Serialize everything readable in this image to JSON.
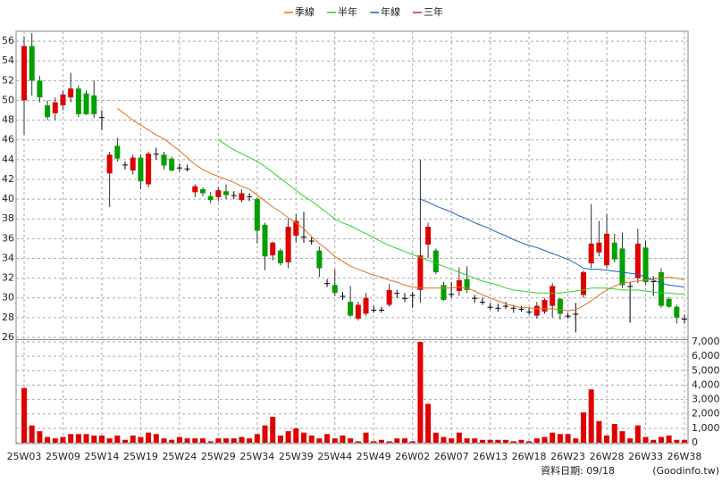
{
  "chart_data": [
    {
      "type": "candlestick",
      "legend": "top",
      "grid": true,
      "categories": [
        "25W03",
        null,
        null,
        null,
        null,
        "25W09",
        null,
        null,
        null,
        null,
        "25W14",
        null,
        null,
        null,
        null,
        "25W19",
        null,
        null,
        null,
        null,
        "25W24",
        null,
        null,
        null,
        null,
        "25W29",
        null,
        null,
        null,
        null,
        "25W34",
        null,
        null,
        null,
        null,
        "25W39",
        null,
        null,
        null,
        null,
        "25W44",
        null,
        null,
        null,
        null,
        "25W49",
        null,
        null,
        null,
        null,
        "26W02",
        null,
        null,
        null,
        null,
        "26W07",
        null,
        null,
        null,
        null,
        "26W13",
        null,
        null,
        null,
        null,
        "26W18",
        null,
        null,
        null,
        null,
        "26W23",
        null,
        null,
        null,
        null,
        "26W28",
        null,
        null,
        null,
        null,
        "26W33",
        null,
        null,
        null,
        null,
        "26W38"
      ],
      "open": [
        50,
        55.5,
        52,
        49.5,
        48.7,
        49.5,
        50.3,
        51.2,
        50.7,
        50.5,
        48.3,
        42.6,
        45.4,
        43.5,
        42.9,
        44.2,
        41.5,
        44.6,
        44.5,
        44.1,
        43.2,
        43.1,
        40.7,
        41,
        40.3,
        40.2,
        40.8,
        40.4,
        39.9,
        40.3,
        40,
        37.4,
        34.3,
        34.8,
        33.6,
        36.3,
        36.2,
        35.8,
        34.8,
        31.5,
        31.3,
        30.2,
        29.6,
        27.9,
        28.4,
        28.8,
        28.8,
        29.3,
        30.5,
        30,
        30.3,
        30.8,
        35.4,
        34.8,
        31.3,
        30.4,
        30.7,
        31.9,
        30,
        29.6,
        29.1,
        29,
        29.2,
        29,
        28.9,
        28.6,
        28.2,
        28.6,
        29.2,
        29.9,
        28.2,
        28.4,
        30.3,
        33.5,
        34.6,
        33.3,
        35.6,
        35,
        31.2,
        32,
        35.1,
        31.7,
        32.6,
        29.9,
        29.1,
        27.9
      ],
      "high": [
        56.5,
        56.8,
        52.5,
        50,
        50.3,
        51,
        52.8,
        51.5,
        51,
        52,
        49,
        44.8,
        46.2,
        43.8,
        44.5,
        44.5,
        44.8,
        45.2,
        44.8,
        44.3,
        43.6,
        43.5,
        41.5,
        41.2,
        40.7,
        41.2,
        41.5,
        40.8,
        41,
        40.6,
        40.2,
        37.6,
        35.7,
        35,
        38,
        38.5,
        38.7,
        36.2,
        35.2,
        31.9,
        32.9,
        30.6,
        31.2,
        29.6,
        30.5,
        29.2,
        29.1,
        31.4,
        30.8,
        30.5,
        30.6,
        44,
        37.6,
        35,
        31.6,
        31.6,
        33.1,
        33.2,
        30.3,
        30,
        29.5,
        29.4,
        29.6,
        29.3,
        29.2,
        29,
        29.6,
        30,
        31.5,
        30,
        28.5,
        29.5,
        32.8,
        39.5,
        37.8,
        38.5,
        36.5,
        36.6,
        31.6,
        37,
        35.8,
        32.2,
        33,
        30.1,
        29.3,
        28.3
      ],
      "low": [
        46.5,
        50.5,
        49.8,
        48,
        48,
        49,
        49.8,
        48.3,
        48.5,
        48.2,
        47,
        39.2,
        43.8,
        43,
        42.5,
        41,
        41.2,
        44,
        43,
        42.8,
        42.8,
        42.8,
        40.2,
        40.3,
        39.6,
        39.8,
        40,
        40,
        39.7,
        39.8,
        35.5,
        32.8,
        33.8,
        33.3,
        33,
        35.6,
        35.6,
        35.4,
        32.1,
        31.1,
        30.2,
        29.8,
        28.1,
        27.7,
        28.2,
        28.5,
        28.5,
        29.1,
        30,
        29.6,
        29,
        29.5,
        34,
        32.4,
        29.7,
        30,
        30.2,
        30.5,
        29.5,
        29.3,
        28.8,
        28.6,
        28.9,
        28.5,
        28.6,
        28.3,
        27.9,
        28.4,
        28,
        27.8,
        27.9,
        26.5,
        30,
        33,
        34.2,
        33,
        33.6,
        31,
        27.5,
        31.5,
        31.3,
        30.2,
        29,
        29,
        27.4,
        27.4
      ],
      "close": [
        55.5,
        52,
        50.3,
        48.3,
        49.8,
        50.6,
        51.2,
        48.6,
        48.6,
        48.6,
        48.3,
        44.5,
        44.1,
        43.5,
        44.2,
        41.8,
        44.6,
        44.6,
        43.4,
        42.9,
        43.2,
        43.1,
        41.3,
        40.6,
        39.9,
        40.9,
        40.4,
        40.4,
        40.6,
        40.3,
        36.8,
        34.2,
        35.6,
        33.5,
        37.2,
        37.8,
        36.2,
        35.8,
        33,
        31.5,
        30.5,
        30.2,
        28.2,
        29.3,
        30,
        28.8,
        28.8,
        30.8,
        30.5,
        30,
        30.3,
        34.3,
        37.2,
        32.6,
        29.8,
        30.4,
        31.8,
        30.8,
        30,
        29.6,
        29.1,
        29,
        29.2,
        29,
        28.9,
        28.6,
        29.2,
        29.8,
        31.2,
        28.4,
        28.2,
        28.4,
        32.6,
        35.5,
        35.6,
        36.5,
        33.9,
        31.3,
        31.2,
        35.5,
        31.6,
        31.7,
        29.2,
        29.1,
        28,
        27.9
      ],
      "up_color": "#e00000",
      "down_color": "#00a000",
      "flat_color": "#000000",
      "series": [
        {
          "name": "季線",
          "color": "#e07020",
          "values": [
            null,
            null,
            null,
            null,
            null,
            null,
            null,
            null,
            null,
            null,
            null,
            null,
            49.2,
            48.6,
            48.0,
            47.5,
            47.0,
            46.5,
            46.1,
            45.5,
            44.9,
            44.2,
            43.5,
            43.0,
            42.6,
            42.3,
            42.0,
            41.7,
            41.3,
            41.0,
            40.4,
            39.8,
            39.2,
            38.7,
            38.1,
            37.6,
            37.0,
            36.2,
            35.5,
            34.9,
            34.2,
            33.7,
            33.2,
            32.9,
            32.6,
            32.3,
            32.1,
            31.8,
            31.6,
            31.3,
            31.1,
            31.0,
            31.0,
            31.0,
            31.0,
            31.0,
            31.1,
            31.0,
            30.7,
            30.3,
            30.0,
            29.7,
            29.4,
            29.2,
            29.0,
            29.0,
            28.9,
            28.9,
            28.9,
            28.8,
            28.7,
            28.8,
            29.2,
            29.7,
            30.3,
            30.8,
            31.2,
            31.5,
            31.6,
            31.7,
            31.8,
            31.9,
            32.0,
            32.1,
            32.0,
            31.8
          ]
        },
        {
          "name": "半年",
          "color": "#30d030",
          "values": [
            null,
            null,
            null,
            null,
            null,
            null,
            null,
            null,
            null,
            null,
            null,
            null,
            null,
            null,
            null,
            null,
            null,
            null,
            null,
            null,
            null,
            null,
            null,
            null,
            null,
            46.0,
            45.5,
            45.0,
            44.6,
            44.2,
            43.8,
            43.3,
            42.7,
            42.1,
            41.5,
            40.9,
            40.3,
            39.8,
            39.2,
            38.6,
            38.0,
            37.6,
            37.3,
            36.9,
            36.5,
            36.1,
            35.7,
            35.3,
            35.0,
            34.7,
            34.4,
            34.1,
            33.8,
            33.5,
            33.2,
            32.9,
            32.6,
            32.3,
            32.0,
            31.7,
            31.5,
            31.3,
            31.0,
            30.8,
            30.7,
            30.6,
            30.5,
            30.5,
            30.5,
            30.5,
            30.6,
            30.7,
            30.8,
            31.0,
            31.0,
            31.0,
            30.9,
            30.8,
            30.8,
            30.8,
            30.7,
            30.6,
            30.5,
            30.5,
            30.4,
            30.4
          ]
        },
        {
          "name": "年線",
          "color": "#2060c0",
          "values": [
            null,
            null,
            null,
            null,
            null,
            null,
            null,
            null,
            null,
            null,
            null,
            null,
            null,
            null,
            null,
            null,
            null,
            null,
            null,
            null,
            null,
            null,
            null,
            null,
            null,
            null,
            null,
            null,
            null,
            null,
            null,
            null,
            null,
            null,
            null,
            null,
            null,
            null,
            null,
            null,
            null,
            null,
            null,
            null,
            null,
            null,
            null,
            null,
            null,
            null,
            null,
            40.0,
            39.7,
            39.3,
            39.0,
            38.7,
            38.3,
            38.0,
            37.6,
            37.3,
            37.0,
            36.6,
            36.3,
            35.9,
            35.6,
            35.3,
            35.1,
            34.8,
            34.5,
            34.2,
            33.9,
            33.5,
            33.0,
            32.9,
            32.9,
            32.8,
            32.7,
            32.6,
            32.5,
            32.4,
            32.1,
            31.8,
            31.5,
            31.3,
            31.2,
            31.1
          ]
        },
        {
          "name": "三年",
          "color": "#e02020",
          "values": [
            null,
            null,
            null,
            null,
            null,
            null,
            null,
            null,
            null,
            null,
            null,
            null,
            null,
            null,
            null,
            null,
            null,
            null,
            null,
            null,
            null,
            null,
            null,
            null,
            null,
            null,
            null,
            null,
            null,
            null,
            null,
            null,
            null,
            null,
            null,
            null,
            null,
            null,
            null,
            null,
            null,
            null,
            null,
            null,
            null,
            null,
            null,
            null,
            null,
            null,
            null,
            null,
            null,
            null,
            null,
            null,
            null,
            null,
            null,
            null,
            null,
            null,
            null,
            null,
            null,
            null,
            null,
            null,
            null,
            null,
            null,
            null,
            null,
            null,
            null,
            null,
            null,
            null,
            null,
            null,
            null,
            null,
            null,
            null,
            null,
            null
          ]
        }
      ],
      "ylim": [
        26,
        57
      ],
      "yticks": [
        26,
        28,
        30,
        32,
        34,
        36,
        38,
        40,
        42,
        44,
        46,
        48,
        50,
        52,
        54,
        56
      ]
    },
    {
      "type": "bar",
      "axis_side": "right",
      "color": "#e00000",
      "values": [
        3800,
        1200,
        800,
        400,
        300,
        400,
        600,
        600,
        600,
        500,
        500,
        300,
        500,
        200,
        500,
        400,
        700,
        600,
        300,
        200,
        400,
        300,
        300,
        300,
        100,
        300,
        300,
        300,
        400,
        300,
        600,
        1200,
        1800,
        500,
        800,
        1000,
        700,
        500,
        300,
        600,
        300,
        500,
        300,
        100,
        700,
        100,
        200,
        100,
        300,
        300,
        100,
        7000,
        2700,
        700,
        400,
        300,
        700,
        300,
        300,
        200,
        200,
        200,
        200,
        100,
        200,
        100,
        300,
        400,
        700,
        600,
        600,
        300,
        2100,
        3700,
        1500,
        500,
        1300,
        800,
        300,
        1200,
        400,
        200,
        400,
        500,
        200,
        200
      ],
      "ylim": [
        0,
        7000
      ],
      "yticks": [
        0,
        {
          "value": 1000,
          "label": "1,000"
        },
        {
          "value": 2000,
          "label": "2,000"
        },
        {
          "value": 3000,
          "label": "3,000"
        },
        {
          "value": 4000,
          "label": "4,000"
        },
        {
          "value": 5000,
          "label": "5,000"
        },
        {
          "value": 6000,
          "label": "6,000"
        },
        {
          "value": 7000,
          "label": "7,000"
        }
      ]
    }
  ],
  "source_date": "資料日期: 09/18",
  "source": "(Goodinfo.tw)"
}
